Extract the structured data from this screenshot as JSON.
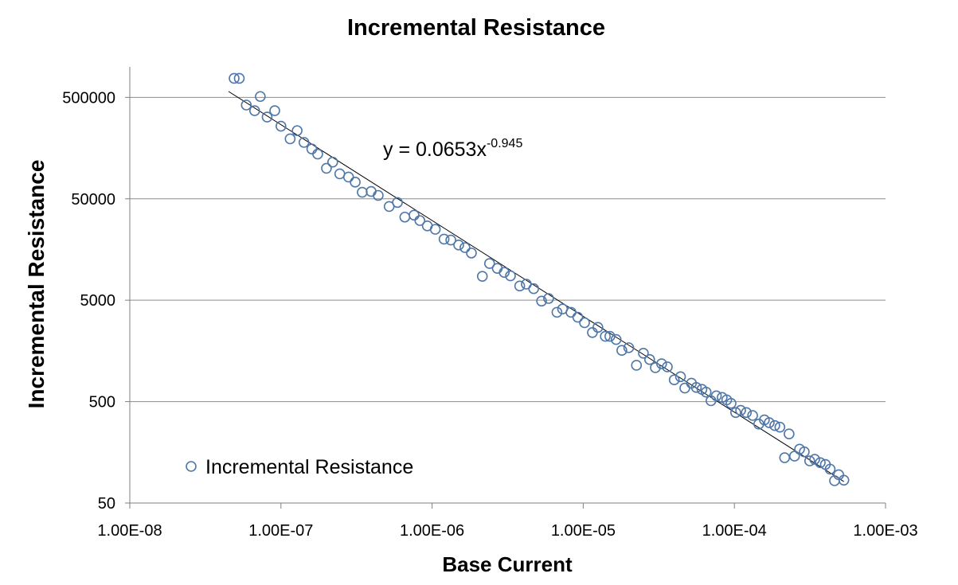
{
  "chart_data": {
    "type": "scatter",
    "title": "Incremental Resistance",
    "xlabel": "Base Current",
    "ylabel": "Incremental Resistance",
    "x_scale": "log",
    "y_scale": "log",
    "xlim": [
      1e-08,
      0.001
    ],
    "ylim": [
      50,
      1000000
    ],
    "x_ticks": [
      1e-08,
      1e-07,
      1e-06,
      1e-05,
      0.0001,
      0.001
    ],
    "x_tick_labels": [
      "1.00E-08",
      "1.00E-07",
      "1.00E-06",
      "1.00E-05",
      "1.00E-04",
      "1.00E-03"
    ],
    "y_ticks": [
      50,
      500,
      5000,
      50000,
      500000
    ],
    "y_tick_labels": [
      "50",
      "500",
      "5000",
      "50000",
      "500000"
    ],
    "grid": "horizontal",
    "legend": {
      "position": "bottom-left",
      "entries": [
        "Incremental Resistance"
      ]
    },
    "marker_color": "#4f77a8",
    "trendline": {
      "type": "power",
      "coefficient": 0.0653,
      "exponent": -0.945,
      "x_range": [
        4.5e-08,
        0.00053
      ],
      "label_base": "y = 0.0653x",
      "label_exponent": "-0.945"
    },
    "series": [
      {
        "name": "Incremental Resistance",
        "points": [
          [
            4.9e-08,
            770000
          ],
          [
            5.3e-08,
            770000
          ],
          [
            5.9e-08,
            420000
          ],
          [
            6.7e-08,
            370000
          ],
          [
            7.3e-08,
            510000
          ],
          [
            8.1e-08,
            320000
          ],
          [
            9.1e-08,
            370000
          ],
          [
            1e-07,
            260000
          ],
          [
            1.15e-07,
            195000
          ],
          [
            1.28e-07,
            235000
          ],
          [
            1.42e-07,
            180000
          ],
          [
            1.6e-07,
            155000
          ],
          [
            1.75e-07,
            138000
          ],
          [
            2e-07,
            100000
          ],
          [
            2.2e-07,
            115000
          ],
          [
            2.45e-07,
            88000
          ],
          [
            2.8e-07,
            82000
          ],
          [
            3.1e-07,
            73000
          ],
          [
            3.45e-07,
            58000
          ],
          [
            3.95e-07,
            59000
          ],
          [
            4.4e-07,
            54000
          ],
          [
            5.2e-07,
            42000
          ],
          [
            5.9e-07,
            46000
          ],
          [
            6.6e-07,
            33000
          ],
          [
            7.6e-07,
            34500
          ],
          [
            8.3e-07,
            30500
          ],
          [
            9.3e-07,
            27000
          ],
          [
            1.05e-06,
            25000
          ],
          [
            1.2e-06,
            20000
          ],
          [
            1.33e-06,
            19600
          ],
          [
            1.5e-06,
            17500
          ],
          [
            1.65e-06,
            16500
          ],
          [
            1.82e-06,
            14600
          ],
          [
            2.15e-06,
            8600
          ],
          [
            2.4e-06,
            11500
          ],
          [
            2.7e-06,
            10300
          ],
          [
            3e-06,
            9400
          ],
          [
            3.3e-06,
            8700
          ],
          [
            3.8e-06,
            6900
          ],
          [
            4.2e-06,
            7200
          ],
          [
            4.7e-06,
            6500
          ],
          [
            5.3e-06,
            4900
          ],
          [
            5.9e-06,
            5200
          ],
          [
            6.7e-06,
            3800
          ],
          [
            7.3e-06,
            4100
          ],
          [
            8.3e-06,
            3800
          ],
          [
            9.2e-06,
            3400
          ],
          [
            1.02e-05,
            3000
          ],
          [
            1.15e-05,
            2400
          ],
          [
            1.25e-05,
            2700
          ],
          [
            1.4e-05,
            2200
          ],
          [
            1.5e-05,
            2200
          ],
          [
            1.65e-05,
            2050
          ],
          [
            1.8e-05,
            1600
          ],
          [
            2e-05,
            1700
          ],
          [
            2.25e-05,
            1140
          ],
          [
            2.5e-05,
            1500
          ],
          [
            2.75e-05,
            1300
          ],
          [
            3e-05,
            1080
          ],
          [
            3.3e-05,
            1180
          ],
          [
            3.6e-05,
            1100
          ],
          [
            4e-05,
            820
          ],
          [
            4.4e-05,
            880
          ],
          [
            4.7e-05,
            680
          ],
          [
            5.2e-05,
            760
          ],
          [
            5.6e-05,
            690
          ],
          [
            6.1e-05,
            660
          ],
          [
            6.5e-05,
            620
          ],
          [
            7e-05,
            510
          ],
          [
            7.6e-05,
            570
          ],
          [
            8.3e-05,
            550
          ],
          [
            8.9e-05,
            520
          ],
          [
            9.5e-05,
            480
          ],
          [
            0.000102,
            390
          ],
          [
            0.00011,
            410
          ],
          [
            0.00012,
            390
          ],
          [
            0.000132,
            365
          ],
          [
            0.000145,
            300
          ],
          [
            0.000158,
            330
          ],
          [
            0.00017,
            310
          ],
          [
            0.000185,
            290
          ],
          [
            0.0002,
            280
          ],
          [
            0.000215,
            140
          ],
          [
            0.00023,
            240
          ],
          [
            0.00025,
            145
          ],
          [
            0.00027,
            170
          ],
          [
            0.00029,
            160
          ],
          [
            0.000315,
            130
          ],
          [
            0.00034,
            135
          ],
          [
            0.00037,
            125
          ],
          [
            0.0004,
            120
          ],
          [
            0.00043,
            108
          ],
          [
            0.00046,
            83
          ],
          [
            0.00049,
            95
          ],
          [
            0.00053,
            84
          ]
        ]
      }
    ]
  }
}
